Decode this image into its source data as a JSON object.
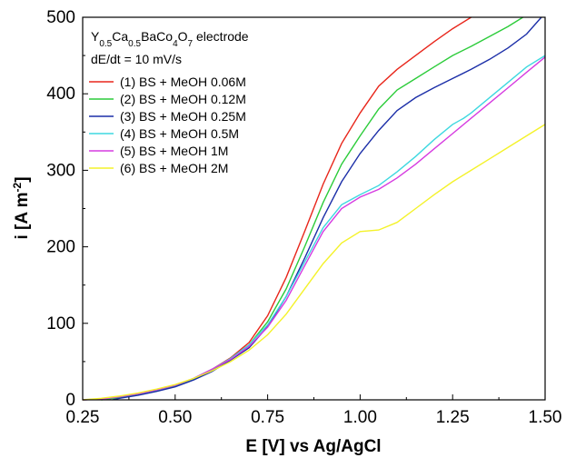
{
  "chart_data": {
    "type": "line",
    "annotation": {
      "electrode": "Y0.5Ca0.5BaCo4O7 electrode",
      "rate": "dE/dt = 10 mV/s"
    },
    "xlabel": "E [V] vs Ag/AgCl",
    "ylabel": "i [A m-2]",
    "xlim": [
      0.25,
      1.5
    ],
    "ylim": [
      0,
      500
    ],
    "xticks": [
      "0.25",
      "0.50",
      "0.75",
      "1.00",
      "1.25",
      "1.50"
    ],
    "yticks": [
      "0",
      "100",
      "200",
      "300",
      "400",
      "500"
    ],
    "grid": false,
    "legend_position": "top-left",
    "series": [
      {
        "name": "(1) BS + MeOH 0.06M",
        "color": "#e8261b",
        "x": [
          0.25,
          0.3,
          0.35,
          0.4,
          0.45,
          0.5,
          0.55,
          0.6,
          0.65,
          0.7,
          0.75,
          0.8,
          0.85,
          0.9,
          0.95,
          1.0,
          1.05,
          1.1,
          1.15,
          1.2,
          1.25,
          1.3
        ],
        "y": [
          0,
          1,
          3,
          7,
          12,
          19,
          28,
          40,
          55,
          75,
          110,
          160,
          220,
          282,
          335,
          375,
          410,
          432,
          450,
          468,
          485,
          500
        ]
      },
      {
        "name": "(2) BS + MeOH 0.12M",
        "color": "#2ccc3a",
        "x": [
          0.3,
          0.35,
          0.4,
          0.45,
          0.5,
          0.55,
          0.6,
          0.65,
          0.7,
          0.75,
          0.8,
          0.85,
          0.9,
          0.95,
          1.0,
          1.05,
          1.1,
          1.15,
          1.2,
          1.25,
          1.3,
          1.35,
          1.4,
          1.44
        ],
        "y": [
          0,
          3,
          7,
          12,
          18,
          27,
          39,
          54,
          72,
          102,
          145,
          200,
          258,
          308,
          345,
          380,
          405,
          420,
          435,
          450,
          462,
          475,
          488,
          500
        ]
      },
      {
        "name": "(3) BS + MeOH 0.25M",
        "color": "#1c2fa8",
        "x": [
          0.33,
          0.35,
          0.4,
          0.45,
          0.5,
          0.55,
          0.6,
          0.65,
          0.7,
          0.75,
          0.8,
          0.85,
          0.9,
          0.95,
          1.0,
          1.05,
          1.1,
          1.15,
          1.2,
          1.25,
          1.3,
          1.35,
          1.4,
          1.45,
          1.49
        ],
        "y": [
          0,
          2,
          6,
          11,
          17,
          26,
          37,
          52,
          68,
          96,
          135,
          185,
          238,
          285,
          322,
          352,
          378,
          395,
          408,
          420,
          432,
          445,
          460,
          478,
          500
        ]
      },
      {
        "name": "(4) BS + MeOH 0.5M",
        "color": "#3ed8e0",
        "x": [
          0.25,
          0.3,
          0.35,
          0.4,
          0.45,
          0.5,
          0.55,
          0.6,
          0.65,
          0.7,
          0.75,
          0.8,
          0.85,
          0.9,
          0.95,
          1.0,
          1.05,
          1.1,
          1.15,
          1.2,
          1.25,
          1.28,
          1.3,
          1.35,
          1.4,
          1.45,
          1.5
        ],
        "y": [
          0,
          1,
          4,
          8,
          13,
          19,
          28,
          40,
          54,
          72,
          98,
          135,
          180,
          225,
          255,
          268,
          280,
          298,
          318,
          340,
          360,
          368,
          375,
          395,
          415,
          435,
          450
        ]
      },
      {
        "name": "(5) BS + MeOH 1M",
        "color": "#d63be0",
        "x": [
          0.25,
          0.3,
          0.35,
          0.4,
          0.45,
          0.5,
          0.55,
          0.6,
          0.65,
          0.7,
          0.75,
          0.8,
          0.85,
          0.9,
          0.95,
          1.0,
          1.05,
          1.1,
          1.15,
          1.2,
          1.25,
          1.3,
          1.35,
          1.4,
          1.45,
          1.5
        ],
        "y": [
          0,
          1,
          4,
          8,
          13,
          19,
          28,
          40,
          53,
          70,
          95,
          130,
          175,
          220,
          250,
          265,
          275,
          290,
          308,
          328,
          348,
          368,
          388,
          408,
          428,
          448
        ]
      },
      {
        "name": "(6) BS + MeOH 2M",
        "color": "#f4f22a",
        "x": [
          0.25,
          0.3,
          0.35,
          0.4,
          0.45,
          0.5,
          0.55,
          0.6,
          0.65,
          0.7,
          0.75,
          0.8,
          0.85,
          0.9,
          0.95,
          1.0,
          1.05,
          1.1,
          1.15,
          1.2,
          1.25,
          1.3,
          1.35,
          1.4,
          1.45,
          1.5
        ],
        "y": [
          0,
          2,
          5,
          9,
          14,
          20,
          28,
          38,
          50,
          65,
          85,
          112,
          145,
          178,
          205,
          220,
          222,
          232,
          250,
          268,
          285,
          300,
          315,
          330,
          345,
          360
        ]
      }
    ]
  }
}
